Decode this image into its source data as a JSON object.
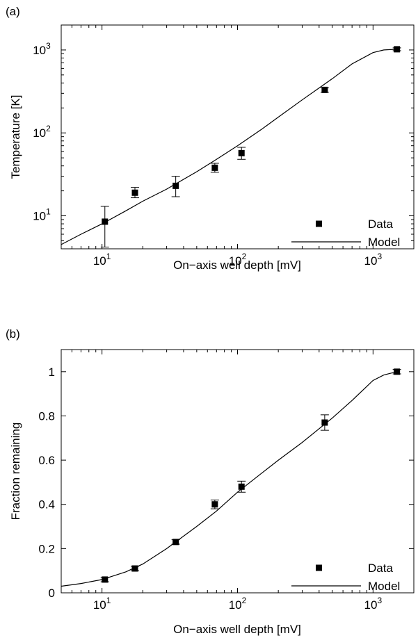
{
  "chart_data": [
    {
      "panel_label": "(a)",
      "type": "scatter",
      "xscale": "log",
      "yscale": "log",
      "xlim": [
        5,
        2000
      ],
      "ylim": [
        4,
        2000
      ],
      "xlabel": "On−axis well depth [mV]",
      "ylabel": "Temperature [K]",
      "x_ticks": [
        10,
        100,
        1000
      ],
      "y_ticks": [
        10,
        100,
        1000
      ],
      "legend": {
        "position": "lower-right",
        "entries": [
          "Data",
          "Model"
        ]
      },
      "grid": false,
      "series": [
        {
          "name": "Data",
          "marker": "square",
          "x": [
            10.5,
            17.5,
            35,
            68,
            107,
            440,
            1500
          ],
          "y": [
            8.5,
            19,
            23,
            38,
            57,
            330,
            1020
          ],
          "yerr_low": [
            4.2,
            16.5,
            17,
            33.5,
            48,
            310,
            980
          ],
          "yerr_high": [
            13,
            22,
            30,
            43,
            67,
            350,
            1060
          ]
        },
        {
          "name": "Model",
          "style": "line",
          "x": [
            5,
            7,
            10,
            15,
            20,
            30,
            50,
            70,
            100,
            150,
            200,
            300,
            500,
            700,
            1000,
            1200,
            1500
          ],
          "y": [
            4.5,
            6,
            8,
            11.5,
            15,
            21,
            34,
            48,
            70,
            110,
            155,
            250,
            450,
            680,
            930,
            1000,
            1020
          ]
        }
      ]
    },
    {
      "panel_label": "(b)",
      "type": "scatter",
      "xscale": "log",
      "yscale": "linear",
      "xlim": [
        5,
        2000
      ],
      "ylim": [
        0,
        1.1
      ],
      "xlabel": "On−axis well depth [mV]",
      "ylabel": "Fraction remaining",
      "x_ticks": [
        10,
        100,
        1000
      ],
      "y_ticks": [
        0,
        0.2,
        0.4,
        0.6,
        0.8,
        1
      ],
      "legend": {
        "position": "lower-right",
        "entries": [
          "Data",
          "Model"
        ]
      },
      "grid": false,
      "series": [
        {
          "name": "Data",
          "marker": "square",
          "x": [
            10.5,
            17.5,
            35,
            68,
            107,
            440,
            1500
          ],
          "y": [
            0.06,
            0.11,
            0.23,
            0.4,
            0.48,
            0.77,
            1.0
          ],
          "yerr_low": [
            0.05,
            0.1,
            0.22,
            0.38,
            0.455,
            0.735,
            0.99
          ],
          "yerr_high": [
            0.07,
            0.12,
            0.24,
            0.42,
            0.505,
            0.805,
            1.01
          ]
        },
        {
          "name": "Model",
          "style": "line",
          "x": [
            5,
            7,
            10,
            15,
            20,
            30,
            50,
            70,
            100,
            150,
            200,
            300,
            500,
            700,
            1000,
            1200,
            1500
          ],
          "y": [
            0.03,
            0.042,
            0.06,
            0.095,
            0.13,
            0.2,
            0.3,
            0.37,
            0.455,
            0.54,
            0.6,
            0.68,
            0.79,
            0.87,
            0.96,
            0.985,
            1.0
          ]
        }
      ]
    }
  ]
}
